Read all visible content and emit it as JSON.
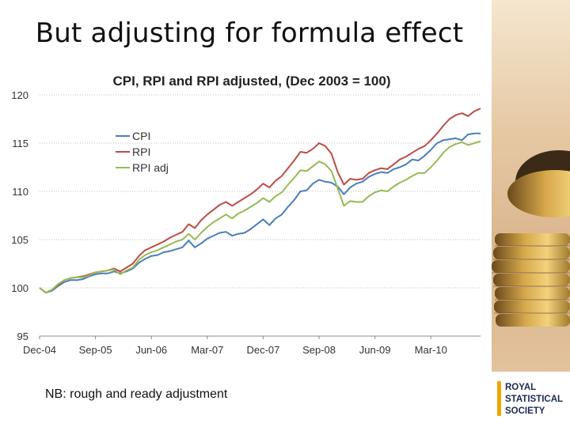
{
  "slide": {
    "title": "But adjusting for formula effect",
    "note": "NB: rough and ready adjustment"
  },
  "logo": {
    "lines": [
      "ROYAL",
      "STATISTICAL",
      "SOCIETY"
    ],
    "bar_color": "#f0a500",
    "text_color": "#1b2a55"
  },
  "chart_data": {
    "type": "line",
    "title": "CPI, RPI and RPI adjusted, (Dec 2003 = 100)",
    "xlabel": "",
    "ylabel": "",
    "ylim": [
      95,
      120
    ],
    "yticks": [
      95,
      100,
      105,
      110,
      115,
      120
    ],
    "xticks": [
      "Dec-04",
      "Sep-05",
      "Jun-06",
      "Mar-07",
      "Dec-07",
      "Sep-08",
      "Jun-09",
      "Mar-10"
    ],
    "x_start": "2004-12",
    "grid": "horizontal dotted",
    "legend": "upper-left",
    "series": [
      {
        "name": "CPI",
        "color": "#4a7ebb",
        "values": [
          100.0,
          99.5,
          99.7,
          100.2,
          100.6,
          100.8,
          100.8,
          100.9,
          101.2,
          101.4,
          101.5,
          101.5,
          101.7,
          101.5,
          101.7,
          102.0,
          102.6,
          103.0,
          103.3,
          103.4,
          103.7,
          103.8,
          104.0,
          104.2,
          104.9,
          104.2,
          104.6,
          105.1,
          105.4,
          105.7,
          105.8,
          105.4,
          105.6,
          105.7,
          106.1,
          106.6,
          107.1,
          106.5,
          107.2,
          107.6,
          108.4,
          109.1,
          110.0,
          110.1,
          110.8,
          111.2,
          111.0,
          110.9,
          110.5,
          109.7,
          110.4,
          110.8,
          111.0,
          111.5,
          111.8,
          112.0,
          111.9,
          112.3,
          112.5,
          112.8,
          113.3,
          113.2,
          113.7,
          114.3,
          115.0,
          115.3,
          115.4,
          115.5,
          115.3,
          115.9,
          116.0,
          116.0
        ]
      },
      {
        "name": "RPI",
        "color": "#be4b48",
        "values": [
          100.0,
          99.5,
          99.8,
          100.3,
          100.8,
          101.0,
          101.1,
          101.2,
          101.4,
          101.6,
          101.7,
          101.8,
          102.0,
          101.7,
          102.1,
          102.5,
          103.3,
          103.9,
          104.2,
          104.5,
          104.8,
          105.2,
          105.5,
          105.8,
          106.6,
          106.2,
          107.0,
          107.6,
          108.1,
          108.6,
          108.9,
          108.5,
          108.9,
          109.3,
          109.7,
          110.2,
          110.8,
          110.4,
          111.1,
          111.6,
          112.4,
          113.2,
          114.1,
          114.0,
          114.4,
          115.0,
          114.7,
          113.9,
          112.0,
          110.7,
          111.3,
          111.2,
          111.3,
          111.9,
          112.2,
          112.4,
          112.3,
          112.8,
          113.3,
          113.6,
          114.0,
          114.4,
          114.7,
          115.3,
          116.0,
          116.8,
          117.5,
          117.9,
          118.1,
          117.8,
          118.3,
          118.6
        ]
      },
      {
        "name": "RPI adj",
        "color": "#98b954",
        "values": [
          100.0,
          99.5,
          99.8,
          100.4,
          100.8,
          101.0,
          101.1,
          101.1,
          101.3,
          101.6,
          101.7,
          101.8,
          101.9,
          101.4,
          101.8,
          102.1,
          102.9,
          103.4,
          103.7,
          103.9,
          104.2,
          104.5,
          104.8,
          105.0,
          105.6,
          105.0,
          105.7,
          106.3,
          106.8,
          107.2,
          107.6,
          107.2,
          107.7,
          108.0,
          108.4,
          108.8,
          109.3,
          108.9,
          109.5,
          109.9,
          110.7,
          111.4,
          112.2,
          112.1,
          112.6,
          113.1,
          112.8,
          112.1,
          110.3,
          108.5,
          109.0,
          108.9,
          108.9,
          109.5,
          109.9,
          110.1,
          110.0,
          110.5,
          110.9,
          111.2,
          111.6,
          111.9,
          111.9,
          112.5,
          113.2,
          114.0,
          114.6,
          114.9,
          115.1,
          114.8,
          115.0,
          115.2
        ]
      }
    ]
  }
}
